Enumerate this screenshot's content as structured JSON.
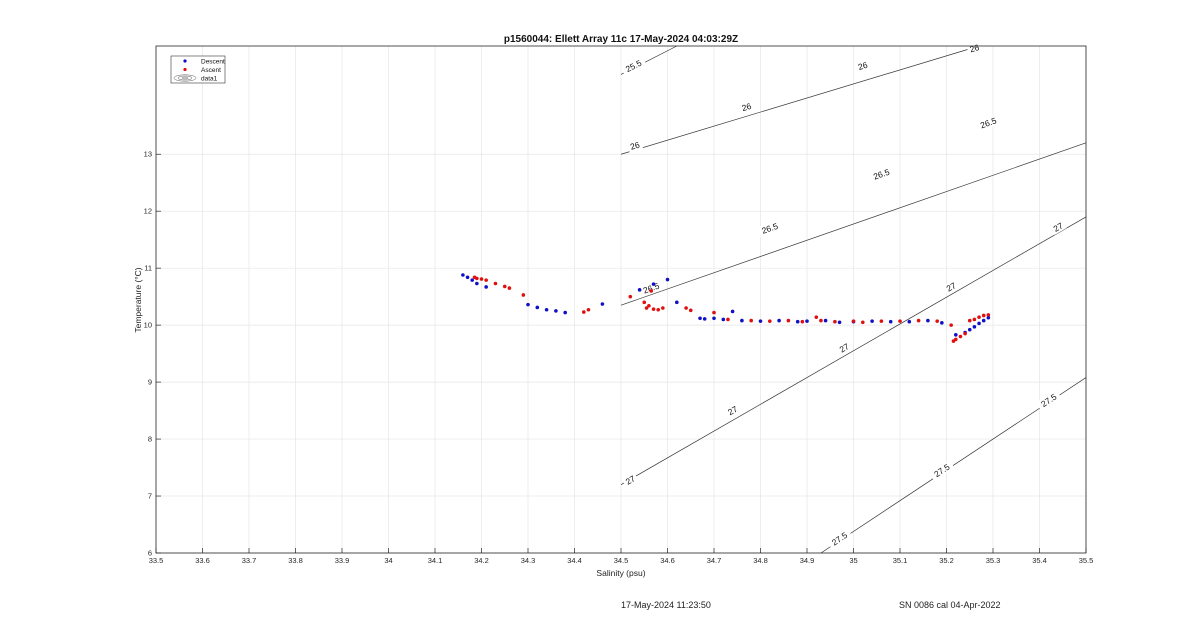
{
  "footer": {
    "timestamp": "17-May-2024 11:23:50",
    "calibration": "SN 0086 cal 04-Apr-2022"
  },
  "chart_data": {
    "type": "scatter",
    "title": "p1560044: Ellett Array 11c 17-May-2024 04:03:29Z",
    "xlabel": "Salinity (psu)",
    "ylabel": "Temperature (°C)",
    "xlim": [
      33.5,
      35.5
    ],
    "ylim": [
      6,
      14.9
    ],
    "xticks": [
      33.5,
      33.6,
      33.7,
      33.8,
      33.9,
      34,
      34.1,
      34.2,
      34.3,
      34.4,
      34.5,
      34.6,
      34.7,
      34.8,
      34.9,
      35,
      35.1,
      35.2,
      35.3,
      35.4,
      35.5
    ],
    "yticks": [
      6,
      7,
      8,
      9,
      10,
      11,
      12,
      13
    ],
    "grid": true,
    "legend": {
      "placement": "top-left",
      "entries": [
        {
          "label": "Descent",
          "color": "#1010c8",
          "marker": "dot"
        },
        {
          "label": "Ascent",
          "color": "#e01010",
          "marker": "dot"
        },
        {
          "label": "data1",
          "color": "#555555",
          "marker": "contour"
        }
      ]
    },
    "contour_series": {
      "name": "data1",
      "color": "#333333",
      "lines": [
        {
          "level": "25.5",
          "points": [
            [
              34.5,
              14.4
            ],
            [
              34.62,
              14.9
            ]
          ],
          "labels": [
            [
              34.527,
              14.55
            ]
          ]
        },
        {
          "level": "26",
          "points": [
            [
              34.5,
              13.0
            ],
            [
              35.27,
              14.9
            ]
          ],
          "labels": [
            [
              34.53,
              13.15
            ],
            [
              34.77,
              13.83
            ],
            [
              35.02,
              14.55
            ],
            [
              35.26,
              14.86
            ]
          ]
        },
        {
          "level": "26.5",
          "points": [
            [
              34.5,
              10.35
            ],
            [
              35.5,
              13.2
            ]
          ],
          "labels": [
            [
              34.565,
              10.65
            ],
            [
              34.82,
              11.7
            ],
            [
              35.06,
              12.65
            ],
            [
              35.29,
              13.55
            ]
          ]
        },
        {
          "level": "27",
          "points": [
            [
              34.5,
              7.2
            ],
            [
              35.5,
              11.9
            ]
          ],
          "labels": [
            [
              34.52,
              7.28
            ],
            [
              34.74,
              8.5
            ],
            [
              34.98,
              9.6
            ],
            [
              35.21,
              10.67
            ],
            [
              35.44,
              11.72
            ]
          ]
        },
        {
          "level": "27.5",
          "points": [
            [
              34.93,
              6.0
            ],
            [
              35.5,
              9.08
            ]
          ],
          "labels": [
            [
              34.97,
              6.25
            ],
            [
              35.19,
              7.45
            ],
            [
              35.42,
              8.68
            ]
          ]
        }
      ]
    },
    "series": [
      {
        "name": "Descent",
        "color": "#1010c8",
        "points": [
          [
            34.16,
            10.88
          ],
          [
            34.17,
            10.84
          ],
          [
            34.18,
            10.79
          ],
          [
            34.19,
            10.73
          ],
          [
            34.21,
            10.67
          ],
          [
            34.3,
            10.36
          ],
          [
            34.32,
            10.31
          ],
          [
            34.34,
            10.27
          ],
          [
            34.36,
            10.25
          ],
          [
            34.38,
            10.22
          ],
          [
            34.46,
            10.37
          ],
          [
            34.54,
            10.62
          ],
          [
            34.57,
            10.72
          ],
          [
            34.6,
            10.8
          ],
          [
            34.62,
            10.4
          ],
          [
            34.67,
            10.12
          ],
          [
            34.68,
            10.11
          ],
          [
            34.7,
            10.12
          ],
          [
            34.72,
            10.1
          ],
          [
            34.74,
            10.24
          ],
          [
            34.76,
            10.08
          ],
          [
            34.8,
            10.07
          ],
          [
            34.84,
            10.08
          ],
          [
            34.88,
            10.06
          ],
          [
            34.9,
            10.07
          ],
          [
            34.94,
            10.08
          ],
          [
            34.97,
            10.05
          ],
          [
            35.0,
            10.06
          ],
          [
            35.04,
            10.07
          ],
          [
            35.08,
            10.06
          ],
          [
            35.12,
            10.06
          ],
          [
            35.16,
            10.08
          ],
          [
            35.19,
            10.04
          ],
          [
            35.22,
            9.83
          ],
          [
            35.24,
            9.87
          ],
          [
            35.25,
            9.92
          ],
          [
            35.26,
            9.97
          ],
          [
            35.27,
            10.03
          ],
          [
            35.28,
            10.08
          ],
          [
            35.29,
            10.13
          ]
        ]
      },
      {
        "name": "Ascent",
        "color": "#e01010",
        "points": [
          [
            34.185,
            10.84
          ],
          [
            34.19,
            10.82
          ],
          [
            34.2,
            10.81
          ],
          [
            34.21,
            10.79
          ],
          [
            34.23,
            10.73
          ],
          [
            34.25,
            10.68
          ],
          [
            34.26,
            10.65
          ],
          [
            34.29,
            10.53
          ],
          [
            34.42,
            10.23
          ],
          [
            34.43,
            10.27
          ],
          [
            34.52,
            10.5
          ],
          [
            34.55,
            10.4
          ],
          [
            34.555,
            10.3
          ],
          [
            34.56,
            10.34
          ],
          [
            34.565,
            10.6
          ],
          [
            34.57,
            10.28
          ],
          [
            34.58,
            10.27
          ],
          [
            34.59,
            10.3
          ],
          [
            34.64,
            10.3
          ],
          [
            34.65,
            10.26
          ],
          [
            34.7,
            10.22
          ],
          [
            34.73,
            10.1
          ],
          [
            34.78,
            10.08
          ],
          [
            34.82,
            10.07
          ],
          [
            34.86,
            10.08
          ],
          [
            34.89,
            10.06
          ],
          [
            34.92,
            10.14
          ],
          [
            34.93,
            10.08
          ],
          [
            34.96,
            10.06
          ],
          [
            35.0,
            10.07
          ],
          [
            35.02,
            10.05
          ],
          [
            35.06,
            10.07
          ],
          [
            35.1,
            10.07
          ],
          [
            35.14,
            10.08
          ],
          [
            35.18,
            10.07
          ],
          [
            35.21,
            10.0
          ],
          [
            35.215,
            9.72
          ],
          [
            35.22,
            9.75
          ],
          [
            35.23,
            9.8
          ],
          [
            35.24,
            9.85
          ],
          [
            35.25,
            10.08
          ],
          [
            35.26,
            10.1
          ],
          [
            35.27,
            10.14
          ],
          [
            35.28,
            10.17
          ],
          [
            35.29,
            10.18
          ]
        ]
      }
    ]
  }
}
